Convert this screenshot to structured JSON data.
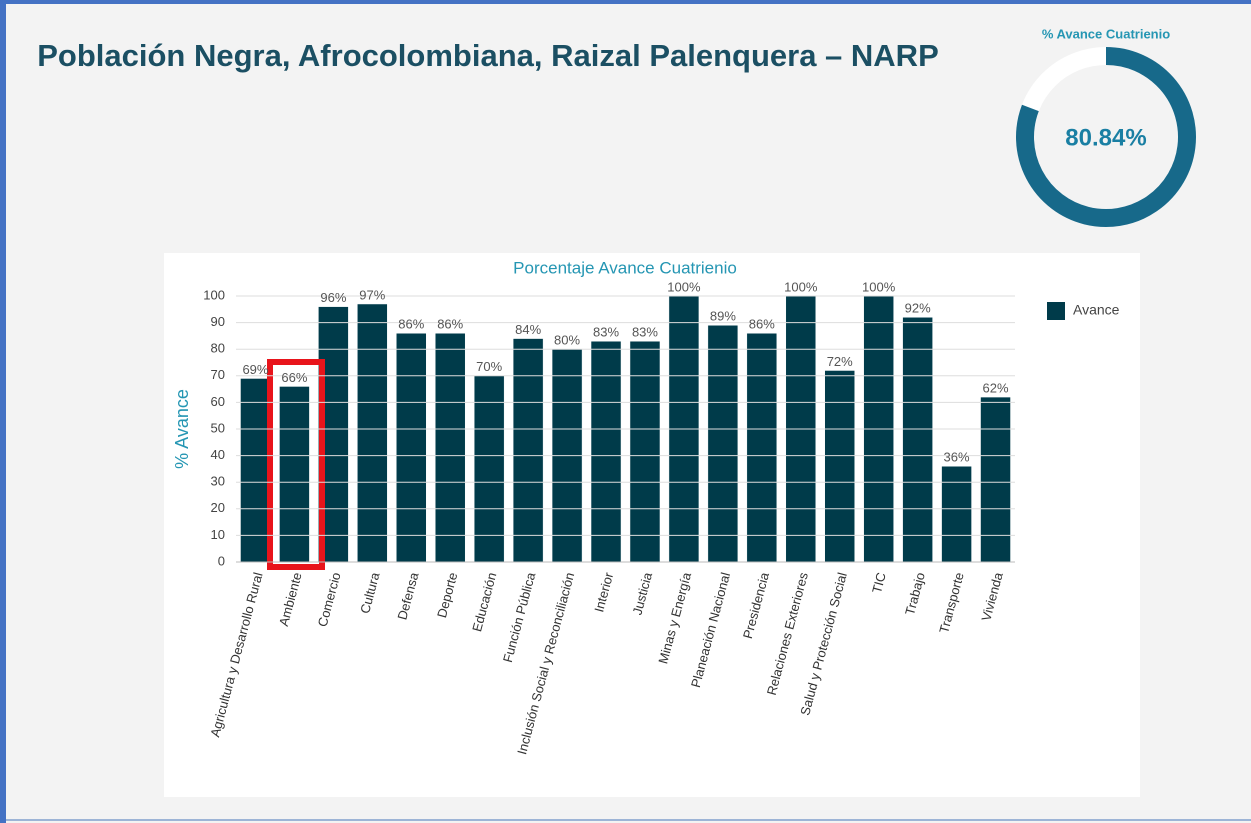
{
  "header": {
    "title": "Población Negra, Afrocolombiana, Raizal Palenquera – NARP"
  },
  "chart_data": [
    {
      "type": "gauge",
      "title": "% Avance Cuatrienio",
      "values": [
        80.84
      ],
      "value_labels": [
        "80.84%"
      ],
      "color": "#17698a"
    },
    {
      "type": "bar",
      "title": "Porcentaje Avance Cuatrienio",
      "ylabel": "% Avance",
      "categories": [
        "Agricultura y Desarrollo Rural",
        "Ambiente",
        "Comercio",
        "Cultura",
        "Defensa",
        "Deporte",
        "Educación",
        "Función Pública",
        "Inclusión Social y Reconciliación",
        "Interior",
        "Justicia",
        "Minas y Energía",
        "Planeación Nacional",
        "Presidencia",
        "Relaciones Exteriores",
        "Salud y Protección Social",
        "TIC",
        "Trabajo",
        "Transporte",
        "Vivienda"
      ],
      "series": [
        {
          "name": "Avance",
          "color": "#003b4a",
          "values": [
            69,
            66,
            96,
            97,
            86,
            86,
            70,
            84,
            80,
            83,
            83,
            100,
            89,
            86,
            100,
            72,
            100,
            92,
            36,
            62
          ],
          "value_labels": [
            "69%",
            "66%",
            "96%",
            "97%",
            "86%",
            "86%",
            "70%",
            "84%",
            "80%",
            "83%",
            "83%",
            "100%",
            "89%",
            "86%",
            "100%",
            "72%",
            "100%",
            "92%",
            "36%",
            "62%"
          ]
        }
      ],
      "ylim": [
        0,
        100
      ],
      "yticks": [
        0,
        10,
        20,
        30,
        40,
        50,
        60,
        70,
        80,
        90,
        100
      ],
      "grid": true,
      "legend": "right"
    }
  ]
}
